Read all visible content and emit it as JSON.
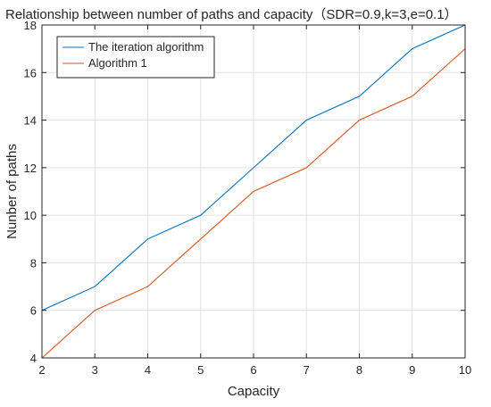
{
  "chart_data": {
    "type": "line",
    "title": "Relationship between number of paths and capacity（SDR=0.9,k=3,e=0.1）",
    "xlabel": "Capacity",
    "ylabel": "Nunber of paths",
    "xlim": [
      2,
      10
    ],
    "ylim": [
      4,
      18
    ],
    "xticks": [
      "2",
      "3",
      "4",
      "5",
      "6",
      "7",
      "8",
      "9",
      "10"
    ],
    "yticks": [
      "4",
      "6",
      "8",
      "10",
      "12",
      "14",
      "16",
      "18"
    ],
    "grid": true,
    "legend_position": "top-left",
    "x": [
      2,
      3,
      4,
      5,
      6,
      7,
      8,
      9,
      10
    ],
    "series": [
      {
        "name": "The iteration algorithm",
        "color": "#0072bd",
        "values": [
          6,
          7,
          9,
          10,
          12,
          14,
          15,
          17,
          18
        ]
      },
      {
        "name": "Algorithm 1",
        "color": "#d95319",
        "values": [
          4,
          6,
          7,
          9,
          11,
          12,
          14,
          15,
          17
        ]
      }
    ]
  }
}
